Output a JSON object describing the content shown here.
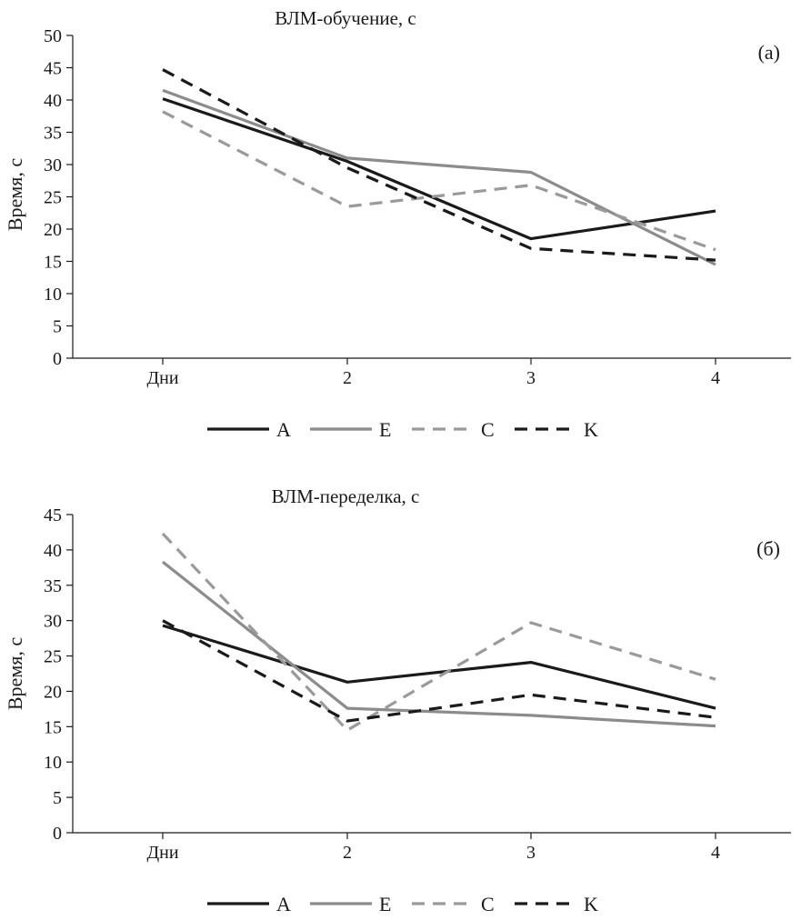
{
  "chart_data": [
    {
      "type": "line",
      "title": "ВЛМ-обучение, с",
      "panel_label": "(а)",
      "xlabel": "",
      "ylabel": "Время, с",
      "categories": [
        "Дни",
        "2",
        "3",
        "4"
      ],
      "ylim": [
        0,
        50
      ],
      "yticks": [
        0,
        5,
        10,
        15,
        20,
        25,
        30,
        35,
        40,
        45,
        50
      ],
      "grid": false,
      "legend_position": "bottom",
      "series": [
        {
          "name": "A",
          "color": "#1a1a1a",
          "dash": "solid",
          "values": [
            40.2,
            30.5,
            18.5,
            22.8
          ]
        },
        {
          "name": "E",
          "color": "#8c8c8c",
          "dash": "solid",
          "values": [
            41.5,
            31.0,
            28.8,
            14.5
          ]
        },
        {
          "name": "C",
          "color": "#9a9a9a",
          "dash": "dashed",
          "values": [
            38.2,
            23.5,
            26.8,
            16.8
          ]
        },
        {
          "name": "K",
          "color": "#1a1a1a",
          "dash": "dashed",
          "values": [
            44.7,
            29.5,
            17.0,
            15.2
          ]
        }
      ]
    },
    {
      "type": "line",
      "title": "ВЛМ-переделка, с",
      "panel_label": "(б)",
      "xlabel": "",
      "ylabel": "Время, с",
      "categories": [
        "Дни",
        "2",
        "3",
        "4"
      ],
      "ylim": [
        0,
        45
      ],
      "yticks": [
        0,
        5,
        10,
        15,
        20,
        25,
        30,
        35,
        40,
        45
      ],
      "grid": false,
      "legend_position": "bottom",
      "series": [
        {
          "name": "A",
          "color": "#1a1a1a",
          "dash": "solid",
          "values": [
            29.3,
            21.3,
            24.1,
            17.6
          ]
        },
        {
          "name": "E",
          "color": "#8c8c8c",
          "dash": "solid",
          "values": [
            38.3,
            17.6,
            16.6,
            15.1
          ]
        },
        {
          "name": "C",
          "color": "#9a9a9a",
          "dash": "dashed",
          "values": [
            42.3,
            14.5,
            29.7,
            21.7
          ]
        },
        {
          "name": "K",
          "color": "#1a1a1a",
          "dash": "dashed",
          "values": [
            30.0,
            15.8,
            19.5,
            16.3
          ]
        }
      ]
    }
  ]
}
